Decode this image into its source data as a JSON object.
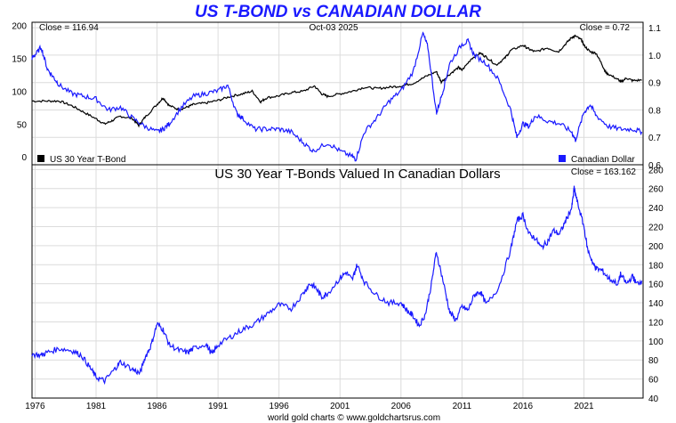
{
  "title": "US T-BOND vs CANADIAN DOLLAR",
  "footer": "world gold charts © www.goldchartsrus.com",
  "colors": {
    "tbond": "#000000",
    "cad": "#1a1aff",
    "title": "#1a1aff",
    "grid": "#dcdcdc"
  },
  "chart_data": [
    {
      "type": "line",
      "panel": "top",
      "close_left_text": "Close = 116.94",
      "date_text": "Oct-03  2025",
      "close_right_text": "Close = 0.72",
      "x_ticks": [
        1976,
        1981,
        1986,
        1991,
        1996,
        2001,
        2006,
        2011,
        2016,
        2021
      ],
      "xlim": [
        1975.75,
        2025.85
      ],
      "y_left": {
        "ticks": [
          0,
          50,
          100,
          150,
          200
        ],
        "ylim": [
          -12,
          205
        ]
      },
      "y_right": {
        "ticks": [
          0.6,
          0.7,
          0.8,
          0.9,
          1.0,
          1.1
        ],
        "ylim": [
          0.6,
          1.12
        ]
      },
      "grid": true,
      "legend": [
        {
          "label": "US 30 Year T-Bond",
          "color": "#000000",
          "position": "bottom-left"
        },
        {
          "label": "Canadian Dollar",
          "color": "#1a1aff",
          "position": "bottom-right"
        }
      ],
      "series": [
        {
          "name": "US 30 Year T-Bond",
          "axis": "left",
          "x": [
            1975.75,
            1977,
            1978,
            1979,
            1980,
            1981,
            1981.7,
            1982.3,
            1983,
            1984,
            1984.5,
            1985,
            1986,
            1986.5,
            1987,
            1987.8,
            1988.5,
            1989,
            1990,
            1991,
            1992,
            1993,
            1993.8,
            1994.5,
            1995,
            1996,
            1997,
            1998,
            1998.9,
            1999.5,
            2000,
            2001,
            2002,
            2003,
            2004,
            2005,
            2006,
            2007,
            2008,
            2008.9,
            2009.3,
            2010,
            2010.7,
            2011,
            2011.8,
            2012.5,
            2013,
            2013.8,
            2014.5,
            2015,
            2016,
            2016.5,
            2017,
            2018,
            2018.9,
            2019.5,
            2020,
            2020.3,
            2020.8,
            2021,
            2021.5,
            2022,
            2022.5,
            2022.8,
            2023,
            2023.8,
            2024,
            2024.5,
            2025,
            2025.75
          ],
          "y": [
            85,
            85,
            85,
            78,
            68,
            58,
            50,
            55,
            62,
            58,
            48,
            60,
            80,
            90,
            78,
            72,
            76,
            80,
            82,
            86,
            92,
            96,
            100,
            84,
            90,
            93,
            98,
            100,
            108,
            96,
            92,
            96,
            100,
            106,
            104,
            106,
            108,
            112,
            122,
            130,
            114,
            126,
            136,
            132,
            150,
            158,
            152,
            140,
            150,
            162,
            170,
            164,
            160,
            166,
            160,
            172,
            182,
            184,
            178,
            170,
            160,
            158,
            140,
            128,
            126,
            118,
            114,
            120,
            116,
            116.94
          ]
        },
        {
          "name": "Canadian Dollar",
          "axis": "right",
          "x": [
            1975.75,
            1976,
            1976.5,
            1977,
            1977.5,
            1978,
            1979,
            1980,
            1981,
            1982,
            1983,
            1984,
            1985,
            1986,
            1986.5,
            1987,
            1988,
            1989,
            1990,
            1991,
            1991.8,
            1992.5,
            1993,
            1994,
            1995,
            1996,
            1997,
            1998,
            1998.8,
            2000,
            2001,
            2002,
            2002.3,
            2003,
            2004,
            2005,
            2006,
            2007,
            2007.8,
            2008.2,
            2008.9,
            2009,
            2009.5,
            2010,
            2011,
            2011.5,
            2012,
            2013,
            2014,
            2015,
            2015.5,
            2016,
            2016.5,
            2017,
            2018,
            2019,
            2020,
            2020.3,
            2021,
            2021.5,
            2022,
            2023,
            2024,
            2025,
            2025.75
          ],
          "y": [
            0.99,
            1.0,
            1.03,
            0.95,
            0.92,
            0.89,
            0.86,
            0.85,
            0.84,
            0.8,
            0.81,
            0.77,
            0.74,
            0.72,
            0.73,
            0.75,
            0.81,
            0.85,
            0.86,
            0.87,
            0.89,
            0.79,
            0.77,
            0.73,
            0.73,
            0.73,
            0.72,
            0.68,
            0.65,
            0.68,
            0.65,
            0.63,
            0.62,
            0.72,
            0.77,
            0.83,
            0.87,
            0.94,
            1.08,
            1.03,
            0.79,
            0.8,
            0.88,
            0.97,
            1.04,
            1.05,
            1.0,
            0.97,
            0.91,
            0.8,
            0.7,
            0.75,
            0.74,
            0.78,
            0.76,
            0.75,
            0.72,
            0.69,
            0.79,
            0.82,
            0.78,
            0.74,
            0.73,
            0.73,
            0.72
          ]
        }
      ]
    },
    {
      "type": "line",
      "panel": "bottom",
      "title": "US 30 Year T-Bonds Valued In Canadian Dollars",
      "close_text": "Close = 163.162",
      "x_ticks": [
        1976,
        1981,
        1986,
        1991,
        1996,
        2001,
        2006,
        2011,
        2016,
        2021
      ],
      "xlim": [
        1975.75,
        2025.85
      ],
      "y_right": {
        "ticks": [
          40,
          60,
          80,
          100,
          120,
          140,
          160,
          180,
          200,
          220,
          240,
          260,
          280
        ],
        "ylim": [
          40,
          285
        ]
      },
      "grid": true,
      "series": [
        {
          "name": "US 30 Year T-Bonds Valued In Canadian Dollars",
          "axis": "right",
          "x": [
            1975.75,
            1976.5,
            1977,
            1978,
            1979,
            1979.8,
            1980.5,
            1981,
            1981.7,
            1982.5,
            1983,
            1984,
            1984.6,
            1985,
            1985.5,
            1986,
            1986.5,
            1987,
            1987.8,
            1988.5,
            1989,
            1990,
            1990.5,
            1991,
            1992,
            1993,
            1994,
            1995,
            1996,
            1997,
            1998,
            1998.5,
            1999,
            1999.5,
            2000,
            2001,
            2001.5,
            2002,
            2002.4,
            2003,
            2004,
            2005,
            2006,
            2006.5,
            2007,
            2007.5,
            2008,
            2008.5,
            2008.9,
            2009.5,
            2010,
            2010.5,
            2011,
            2011.5,
            2012,
            2012.5,
            2013,
            2014,
            2015,
            2015.5,
            2016,
            2016.5,
            2017,
            2017.5,
            2018,
            2018.5,
            2019,
            2019.5,
            2020,
            2020.2,
            2020.5,
            2021,
            2021.3,
            2021.8,
            2022,
            2022.5,
            2023,
            2023.8,
            2024,
            2024.5,
            2025,
            2025.3,
            2025.75
          ],
          "y": [
            86,
            85,
            88,
            92,
            90,
            85,
            72,
            62,
            58,
            70,
            78,
            70,
            66,
            82,
            95,
            118,
            112,
            96,
            90,
            88,
            92,
            97,
            86,
            96,
            104,
            112,
            118,
            128,
            138,
            134,
            150,
            160,
            156,
            146,
            150,
            166,
            172,
            164,
            180,
            162,
            148,
            140,
            140,
            132,
            126,
            116,
            128,
            160,
            194,
            160,
            130,
            122,
            136,
            132,
            148,
            152,
            138,
            156,
            196,
            226,
            232,
            212,
            208,
            198,
            204,
            216,
            212,
            226,
            240,
            260,
            244,
            220,
            196,
            180,
            176,
            174,
            166,
            160,
            170,
            160,
            168,
            160,
            163.162
          ]
        }
      ]
    }
  ]
}
